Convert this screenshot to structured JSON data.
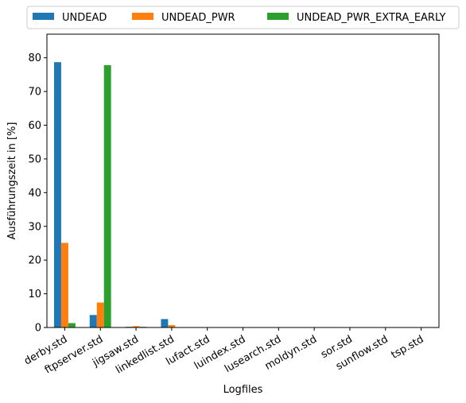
{
  "chart_data": {
    "type": "bar",
    "title": "",
    "xlabel": "Logfiles",
    "ylabel": "Ausführungszeit in [%]",
    "ylim": [
      0,
      87
    ],
    "yticks": [
      0,
      10,
      20,
      30,
      40,
      50,
      60,
      70,
      80
    ],
    "grid": false,
    "legend_position": "top",
    "categories": [
      "derby.std",
      "ftpserver.std",
      "jigsaw.std",
      "linkedlist.std",
      "lufact.std",
      "luindex.std",
      "lusearch.std",
      "moldyn.std",
      "sor.std",
      "sunflow.std",
      "tsp.std"
    ],
    "series": [
      {
        "name": "UNDEAD",
        "color": "#1f77b4",
        "values": [
          78.7,
          3.7,
          0.2,
          2.5,
          0.0,
          0.0,
          0.0,
          0.0,
          0.0,
          0.0,
          0.0
        ]
      },
      {
        "name": "UNDEAD_PWR",
        "color": "#ff7f0e",
        "values": [
          25.1,
          7.4,
          0.4,
          0.7,
          0.0,
          0.0,
          0.0,
          0.0,
          0.0,
          0.0,
          0.0
        ]
      },
      {
        "name": "UNDEAD_PWR_EXTRA_EARLY",
        "color": "#2ca02c",
        "values": [
          1.3,
          77.8,
          0.2,
          0.1,
          0.0,
          0.0,
          0.0,
          0.0,
          0.0,
          0.0,
          0.0
        ]
      }
    ]
  }
}
